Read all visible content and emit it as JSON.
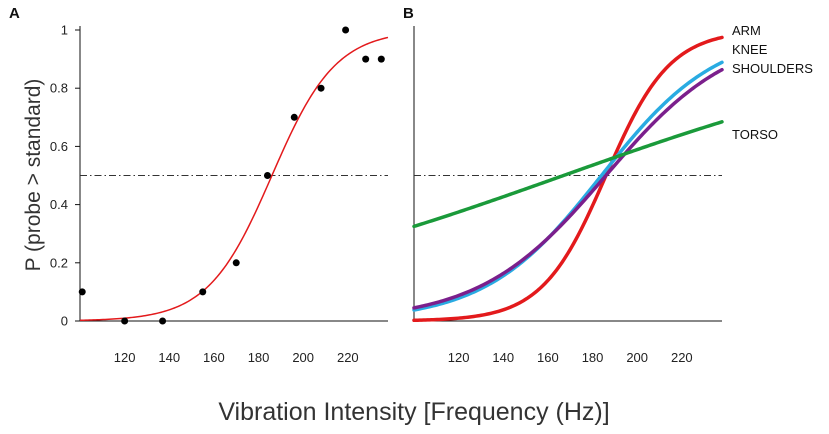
{
  "colors": {
    "axis": "#111111",
    "fit": "#e31a1c",
    "dot": "#000000",
    "ref": "#333333",
    "arm": "#e31a1c",
    "knee": "#29abe2",
    "shoulders": "#7b1f8c",
    "torso": "#1a9a3a"
  },
  "xlabel": "Vibration Intensity [Frequency (Hz)]",
  "ylabel": "P (probe > standard)",
  "chart_data": [
    {
      "panel_label": "A",
      "type": "scatter",
      "xlim": [
        100,
        238
      ],
      "ylim": [
        0,
        1
      ],
      "x_ticks": [
        "120",
        "140",
        "160",
        "180",
        "200",
        "220"
      ],
      "y_ticks": [
        "0",
        "0.2",
        "0.4",
        "0.6",
        "0.8",
        "1"
      ],
      "reference_line": 0.5,
      "points": [
        {
          "x": 101,
          "y": 0.1
        },
        {
          "x": 120,
          "y": 0.0
        },
        {
          "x": 137,
          "y": 0.0
        },
        {
          "x": 155,
          "y": 0.1
        },
        {
          "x": 170,
          "y": 0.2
        },
        {
          "x": 184,
          "y": 0.5
        },
        {
          "x": 196,
          "y": 0.7
        },
        {
          "x": 208,
          "y": 0.8
        },
        {
          "x": 219,
          "y": 1.0
        },
        {
          "x": 228,
          "y": 0.9
        },
        {
          "x": 235,
          "y": 0.9
        }
      ],
      "fit": {
        "name": "logistic fit",
        "x0": 186,
        "slope": 0.07
      }
    },
    {
      "panel_label": "B",
      "type": "line",
      "xlim": [
        100,
        238
      ],
      "ylim": [
        0,
        1
      ],
      "x_ticks": [
        "120",
        "140",
        "160",
        "180",
        "200",
        "220"
      ],
      "reference_line": 0.5,
      "series": [
        {
          "name": "ARM",
          "color_key": "arm",
          "x0": 186,
          "slope": 0.07
        },
        {
          "name": "KNEE",
          "color_key": "knee",
          "x0": 184,
          "slope": 0.0385
        },
        {
          "name": "SHOULDERS",
          "color_key": "shoulders",
          "x0": 186,
          "slope": 0.0355
        },
        {
          "name": "TORSO",
          "color_key": "torso",
          "x0": 167,
          "slope": 0.0109
        }
      ]
    }
  ]
}
